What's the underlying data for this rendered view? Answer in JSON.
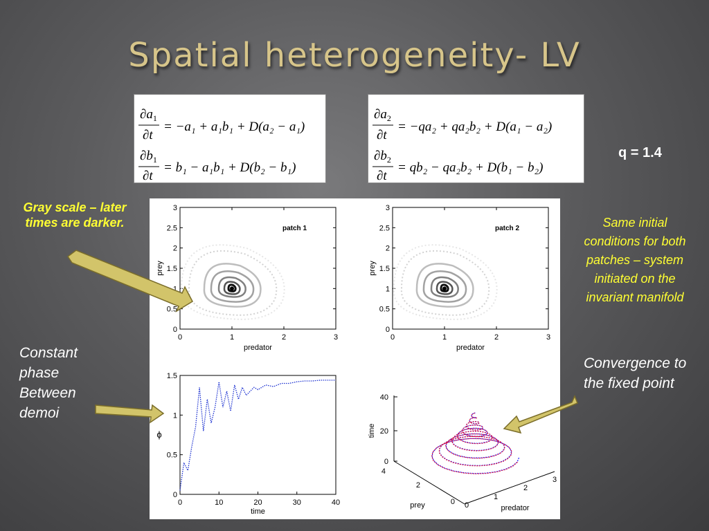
{
  "slide": {
    "title": "Spatial heterogeneity- LV",
    "q_label": "q = 1.4",
    "gray_scale_note": "Gray scale – later times are darker.",
    "same_initial_note": "Same initial conditions for both patches – system initiated on the invariant manifold",
    "constant_phase_note": "Constant phase Between demoi",
    "convergence_note": "Convergence to the fixed point"
  },
  "equations": {
    "patch1": {
      "eq1": "∂a₁/∂t = −a₁ + a₁b₁ + D(a₂ − a₁)",
      "eq2": "∂b₁/∂t = b₁ − a₁b₁ + D(b₂ − b₁)"
    },
    "patch2": {
      "eq1": "∂a₂/∂t = −qa₂ + qa₂b₂ + D(a₁ − a₂)",
      "eq2": "∂b₂/∂t = qb₂ − qa₂b₂ + D(b₁ − b₂)"
    }
  },
  "chart_data": [
    {
      "type": "line",
      "title": "patch 1",
      "xlabel": "predator",
      "ylabel": "prey",
      "xlim": [
        0,
        3
      ],
      "ylim": [
        0,
        3
      ],
      "xticks": [
        "0",
        "1",
        "2",
        "3"
      ],
      "yticks": [
        "0",
        "0.5",
        "1",
        "1.5",
        "2",
        "2.5",
        "3"
      ],
      "fixed_point": [
        1,
        1
      ]
    },
    {
      "type": "line",
      "title": "patch 2",
      "xlabel": "predator",
      "ylabel": "prey",
      "xlim": [
        0,
        3
      ],
      "ylim": [
        0,
        3
      ],
      "xticks": [
        "0",
        "1",
        "2",
        "3"
      ],
      "yticks": [
        "0",
        "0.5",
        "1",
        "1.5",
        "2",
        "2.5",
        "3"
      ],
      "fixed_point": [
        1,
        1
      ]
    },
    {
      "type": "line",
      "xlabel": "time",
      "ylabel": "ϕ",
      "xlim": [
        0,
        40
      ],
      "ylim": [
        0,
        1.5
      ],
      "xticks": [
        "0",
        "10",
        "20",
        "30",
        "40"
      ],
      "yticks": [
        "0",
        "0.5",
        "1",
        "1.5"
      ],
      "series": [
        {
          "x": [
            0,
            1,
            2,
            3,
            4,
            5,
            6,
            7,
            8,
            9,
            10,
            11,
            12,
            13,
            14,
            15,
            16,
            17,
            18,
            19,
            20,
            22,
            24,
            26,
            28,
            30,
            32,
            34,
            36,
            38,
            40
          ],
          "y": [
            0.05,
            0.4,
            0.3,
            0.6,
            0.85,
            1.35,
            0.8,
            1.2,
            0.9,
            1.1,
            1.42,
            1.1,
            1.3,
            1.05,
            1.38,
            1.2,
            1.35,
            1.25,
            1.3,
            1.35,
            1.32,
            1.38,
            1.36,
            1.4,
            1.4,
            1.42,
            1.43,
            1.43,
            1.44,
            1.44,
            1.44
          ]
        }
      ]
    },
    {
      "type": "line",
      "xlabel": "predator",
      "ylabel": "prey",
      "zlabel": "time",
      "xticks": [
        "0",
        "1",
        "2",
        "3"
      ],
      "yticks": [
        "0",
        "2",
        "4"
      ],
      "zticks": [
        "0",
        "20",
        "40"
      ]
    }
  ]
}
